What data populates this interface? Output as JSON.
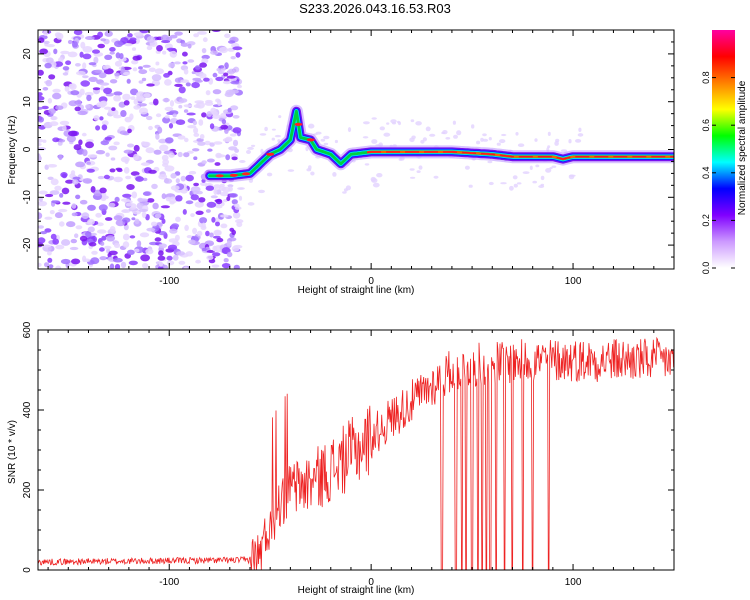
{
  "title": "S233.2026.043.16.53.R03",
  "chart_data": [
    {
      "type": "heatmap",
      "name": "spectrogram",
      "title": "S233.2026.043.16.53.R03",
      "xlabel": "Height of straight line (km)",
      "ylabel": "Frequency (Hz)",
      "xlim": [
        -165,
        150
      ],
      "ylim": [
        -25,
        25
      ],
      "x_ticks": [
        -100,
        0,
        100
      ],
      "y_ticks": [
        -20,
        -10,
        0,
        10,
        20
      ],
      "noise_region_x": [
        -165,
        -65
      ],
      "ridge": {
        "x": [
          -80,
          -70,
          -60,
          -55,
          -50,
          -45,
          -40,
          -37,
          -35,
          -30,
          -27,
          -20,
          -15,
          -10,
          0,
          20,
          40,
          60,
          70,
          80,
          90,
          95,
          100,
          110,
          120,
          150
        ],
        "y": [
          -5.5,
          -5.5,
          -5,
          -3,
          -1,
          0,
          2,
          8,
          2.5,
          2,
          0,
          -1,
          -3,
          -1,
          -0.5,
          -0.5,
          -0.5,
          -1,
          -1.5,
          -1.5,
          -1.5,
          -2,
          -1.5,
          -1.5,
          -1.5,
          -1.5
        ]
      },
      "colorbar": {
        "label": "Normalized spectral amplitude",
        "range": [
          0,
          1
        ],
        "ticks": [
          "0.0",
          "0.2",
          "0.4",
          "0.6",
          "0.8"
        ],
        "colors": [
          "#ffffff",
          "#cc99ff",
          "#8000ff",
          "#0000ff",
          "#00ffff",
          "#00ff00",
          "#ffff00",
          "#ff8000",
          "#ff0000",
          "#ff00a0"
        ]
      }
    },
    {
      "type": "line",
      "name": "snr",
      "xlabel": "Height of straight line (km)",
      "ylabel": "SNR (10 * v/v)",
      "xlim": [
        -165,
        150
      ],
      "ylim": [
        0,
        600
      ],
      "x_ticks": [
        -100,
        0,
        100
      ],
      "y_ticks": [
        0,
        200,
        400,
        600
      ],
      "color": "#ee2222",
      "profile_x": [
        -165,
        -60,
        -55,
        -50,
        -45,
        -40,
        -30,
        -20,
        -10,
        0,
        10,
        20,
        30,
        40,
        50,
        60,
        70,
        80,
        100,
        120,
        150
      ],
      "profile_y": [
        20,
        25,
        40,
        120,
        170,
        200,
        220,
        250,
        290,
        330,
        380,
        420,
        460,
        500,
        510,
        520,
        520,
        525,
        525,
        525,
        525
      ],
      "dropouts_x": [
        35,
        42,
        45,
        47,
        50,
        53,
        55,
        57,
        59,
        62,
        66,
        70,
        75,
        80,
        88
      ]
    }
  ]
}
